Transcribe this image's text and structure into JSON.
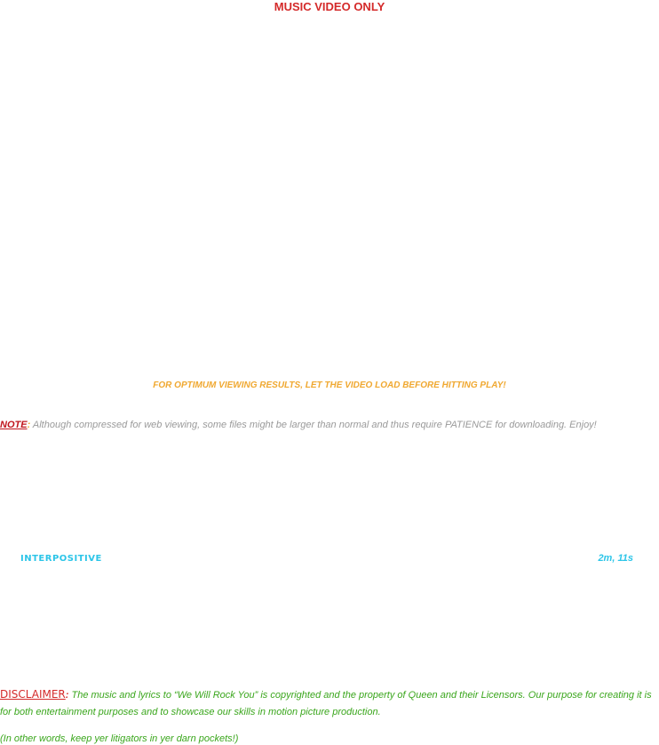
{
  "header": {
    "title": "MUSIC VIDEO ONLY"
  },
  "notice": {
    "optimum": "FOR OPTIMUM VIEWING RESULTS, LET THE VIDEO LOAD BEFORE HITTING PLAY!"
  },
  "note": {
    "label": "NOTE",
    "colon": ":",
    "text": " Although compressed for web viewing, some files might be larger than normal and thus require PATIENCE for downloading.  Enjoy!"
  },
  "video_link": {
    "label": "INTERPOSITIVE",
    "duration": "2m, 11s"
  },
  "disclaimer": {
    "label": "DISCLAIMER",
    "colon": ":",
    "text": "  The music and lyrics to “We Will Rock You” is copyrighted and the property of Queen and their Licensors.  Our purpose for creating it is for both entertainment purposes and to showcase our skills in motion picture production.",
    "aside": "(In other words, keep yer litigators in yer darn pockets!)"
  },
  "colors": {
    "header_red": "#d42a2a",
    "notice_orange": "#f0a830",
    "note_gray": "#9a9a9a",
    "link_cyan": "#2cc5e8",
    "disclaimer_green": "#3aa61c"
  }
}
